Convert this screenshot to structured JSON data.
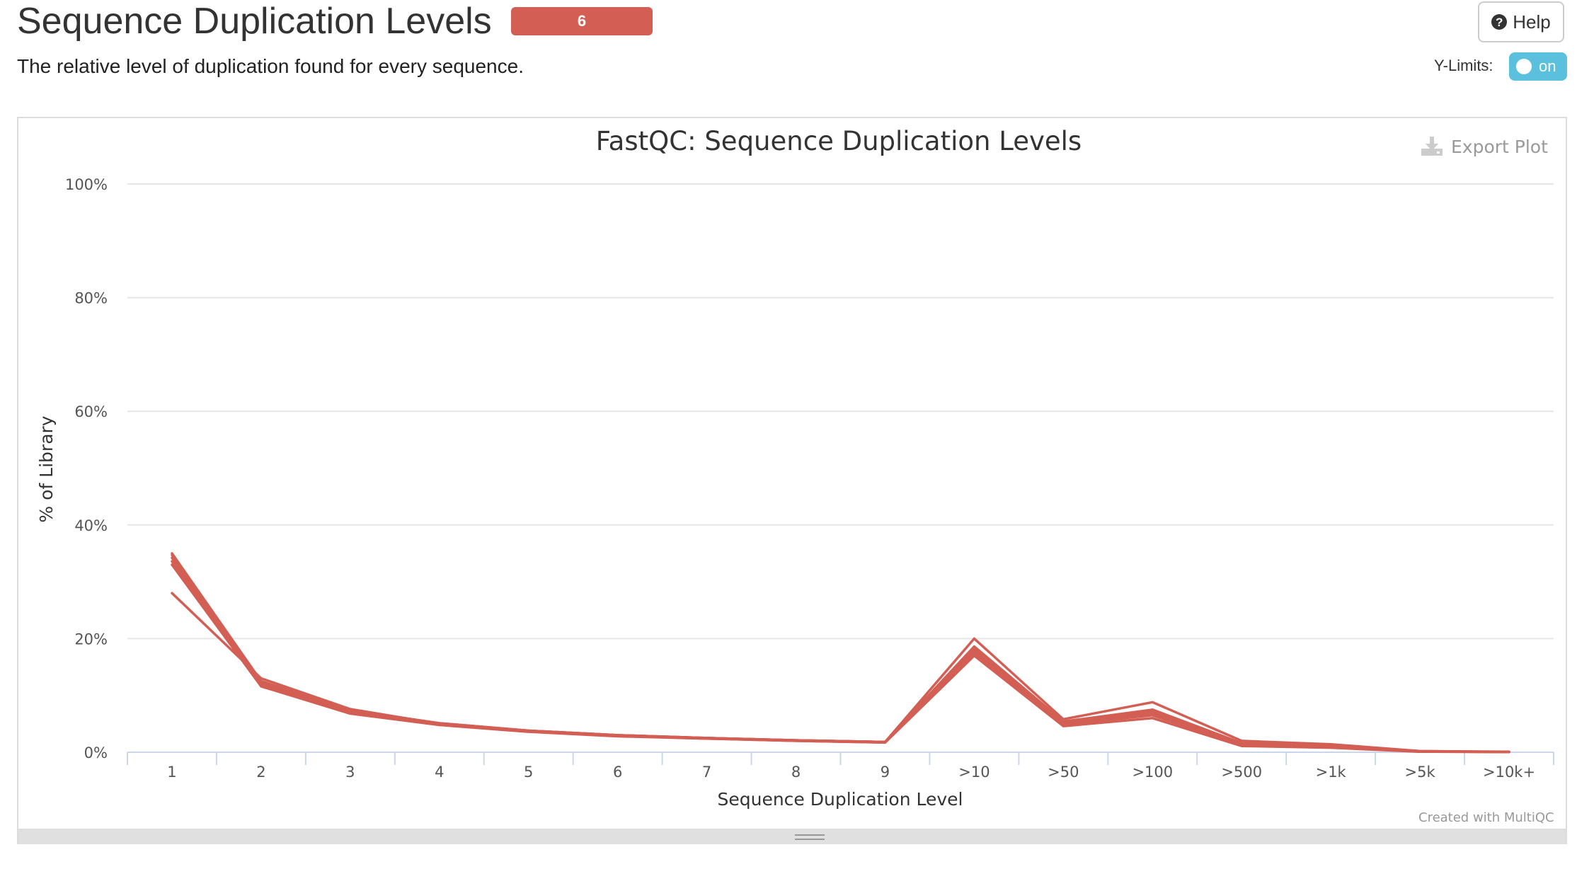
{
  "header": {
    "title": "Sequence Duplication Levels",
    "badge_count": "6",
    "description": "The relative level of duplication found for every sequence.",
    "help_label": "Help",
    "ylimits_label": "Y-Limits:",
    "ylimits_toggle": "on"
  },
  "plot": {
    "export_label": "Export Plot",
    "credit": "Created with MultiQC"
  },
  "colors": {
    "series": "#d35e54",
    "badge": "#d35e54",
    "toggle": "#5bc0de"
  },
  "chart_data": {
    "type": "line",
    "title": "FastQC: Sequence Duplication Levels",
    "xlabel": "Sequence Duplication Level",
    "ylabel": "% of Library",
    "categories": [
      "1",
      "2",
      "3",
      "4",
      "5",
      "6",
      "7",
      "8",
      "9",
      ">10",
      ">50",
      ">100",
      ">500",
      ">1k",
      ">5k",
      ">10k+"
    ],
    "y_ticks": [
      "0%",
      "20%",
      "40%",
      "60%",
      "80%",
      "100%"
    ],
    "ylim": [
      0,
      100
    ],
    "grid": true,
    "legend": "none",
    "series": [
      {
        "values": [
          28.0,
          13.0,
          7.6,
          5.0,
          3.8,
          3.0,
          2.5,
          2.1,
          1.8,
          20.0,
          5.8,
          8.8,
          2.0,
          1.4,
          0.2,
          0.1
        ]
      },
      {
        "values": [
          33.0,
          11.6,
          6.8,
          4.8,
          3.6,
          2.8,
          2.4,
          2.0,
          1.7,
          17.0,
          4.6,
          6.0,
          1.1,
          0.8,
          0.1,
          0.05
        ]
      },
      {
        "values": [
          33.6,
          11.9,
          7.0,
          4.9,
          3.7,
          2.9,
          2.4,
          2.0,
          1.7,
          17.5,
          4.9,
          6.5,
          1.3,
          1.0,
          0.1,
          0.05
        ]
      },
      {
        "values": [
          34.2,
          12.1,
          7.1,
          5.0,
          3.7,
          2.9,
          2.5,
          2.1,
          1.8,
          18.0,
          5.1,
          6.9,
          1.4,
          1.1,
          0.15,
          0.05
        ]
      },
      {
        "values": [
          34.7,
          12.3,
          7.3,
          5.1,
          3.8,
          3.0,
          2.5,
          2.1,
          1.8,
          18.3,
          5.2,
          7.2,
          1.5,
          1.1,
          0.15,
          0.05
        ]
      },
      {
        "values": [
          35.0,
          12.5,
          7.4,
          5.1,
          3.8,
          3.0,
          2.5,
          2.1,
          1.8,
          18.6,
          5.4,
          7.5,
          1.6,
          1.2,
          0.2,
          0.05
        ]
      }
    ]
  }
}
